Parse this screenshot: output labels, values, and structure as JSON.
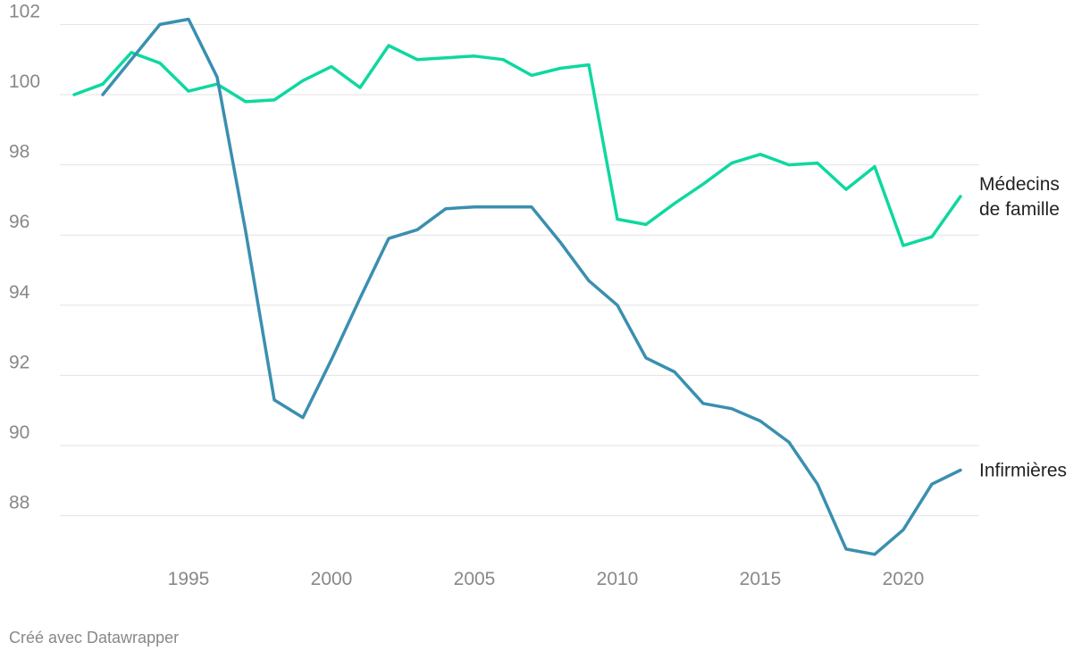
{
  "chart_data": {
    "type": "line",
    "x": [
      1991,
      1992,
      1993,
      1994,
      1995,
      1996,
      1997,
      1998,
      1999,
      2000,
      2001,
      2002,
      2003,
      2004,
      2005,
      2006,
      2007,
      2008,
      2009,
      2010,
      2011,
      2012,
      2013,
      2014,
      2015,
      2016,
      2017,
      2018,
      2019,
      2020,
      2021,
      2022
    ],
    "series": [
      {
        "name": "Médecins de famille",
        "label_lines": [
          "Médecins",
          "de famille"
        ],
        "color": "#0ed8a0",
        "values": [
          100.0,
          100.3,
          101.2,
          100.9,
          100.1,
          100.3,
          99.8,
          99.85,
          100.4,
          100.8,
          100.2,
          101.4,
          101.0,
          101.05,
          101.1,
          101.0,
          100.55,
          100.75,
          100.85,
          96.45,
          96.3,
          96.9,
          97.45,
          98.05,
          98.3,
          98.0,
          98.05,
          97.3,
          97.95,
          95.7,
          95.95,
          97.1
        ]
      },
      {
        "name": "Infirmières",
        "label_lines": [
          "Infirmières"
        ],
        "color": "#3a8fb0",
        "values": [
          null,
          100.0,
          101.0,
          102.0,
          102.15,
          100.5,
          96.1,
          91.3,
          90.8,
          92.45,
          94.2,
          95.9,
          96.15,
          96.75,
          96.8,
          96.8,
          96.8,
          95.8,
          94.7,
          94.0,
          92.5,
          92.1,
          91.2,
          91.05,
          90.7,
          90.1,
          88.9,
          87.05,
          86.9,
          87.6,
          88.9,
          89.3
        ]
      }
    ],
    "yticks": [
      88,
      90,
      92,
      94,
      96,
      98,
      100,
      102
    ],
    "xticks": [
      1995,
      2000,
      2005,
      2010,
      2015,
      2020
    ],
    "ylim": [
      86.8,
      102.5
    ],
    "xlim": [
      1991,
      2022
    ],
    "grid": true,
    "legend": "direct labels at line ends"
  },
  "footer": {
    "credit": "Créé avec Datawrapper"
  }
}
